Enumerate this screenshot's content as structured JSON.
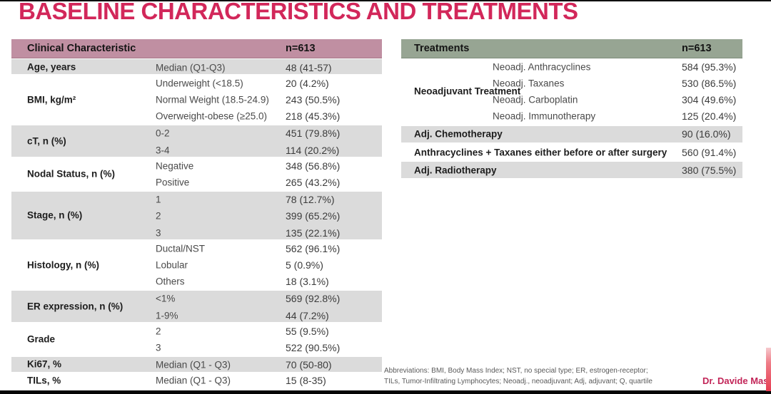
{
  "page": {
    "title": "BASELINE CHARACTERISTICS AND TREATMENTS",
    "credit": "Dr. Davide Massa",
    "footnote_line1": "Abbreviations: BMI, Body Mass Index; NST, no special type; ER, estrogen-receptor;",
    "footnote_line2": "TILs, Tumor-Infiltrating Lymphocytes; Neoadj., neoadjuvant; Adj, adjuvant; Q, quartile"
  },
  "colors": {
    "title_accent": "#d2275a",
    "left_header_bg": "#c08fa2",
    "right_header_bg": "#97a593",
    "row_gray": "#dbdbdb",
    "row_white": "#ffffff",
    "credit_accent": "#c22558",
    "right_edge_bar": "#e63d52"
  },
  "left_table": {
    "header": {
      "col1": "Clinical Characteristic",
      "n": "n=613"
    },
    "groups": [
      {
        "label": "Age, years",
        "shade": "gray",
        "rows": [
          {
            "sub": "Median (Q1-Q3)",
            "value": "48 (41-57)"
          }
        ]
      },
      {
        "label": "BMI, kg/m²",
        "shade": "white",
        "rows": [
          {
            "sub": "Underweight (<18.5)",
            "value": "20 (4.2%)"
          },
          {
            "sub": "Normal Weight (18.5-24.9)",
            "value": "243 (50.5%)"
          },
          {
            "sub": "Overweight-obese (≥25.0)",
            "value": "218 (45.3%)"
          }
        ]
      },
      {
        "label": "cT, n (%)",
        "shade": "gray",
        "rows": [
          {
            "sub": "0-2",
            "value": "451 (79.8%)"
          },
          {
            "sub": "3-4",
            "value": "114 (20.2%)"
          }
        ]
      },
      {
        "label": "Nodal Status, n (%)",
        "shade": "white",
        "rows": [
          {
            "sub": "Negative",
            "value": "348 (56.8%)"
          },
          {
            "sub": "Positive",
            "value": "265 (43.2%)"
          }
        ]
      },
      {
        "label": "Stage, n (%)",
        "shade": "gray",
        "rows": [
          {
            "sub": "1",
            "value": "78 (12.7%)"
          },
          {
            "sub": "2",
            "value": "399 (65.2%)"
          },
          {
            "sub": "3",
            "value": "135 (22.1%)"
          }
        ]
      },
      {
        "label": "Histology, n (%)",
        "shade": "white",
        "rows": [
          {
            "sub": "Ductal/NST",
            "value": "562 (96.1%)"
          },
          {
            "sub": "Lobular",
            "value": "5 (0.9%)"
          },
          {
            "sub": "Others",
            "value": "18 (3.1%)"
          }
        ]
      },
      {
        "label": "ER expression, n (%)",
        "shade": "gray",
        "rows": [
          {
            "sub": "<1%",
            "value": "569 (92.8%)"
          },
          {
            "sub": "1-9%",
            "value": "44 (7.2%)"
          }
        ]
      },
      {
        "label": "Grade",
        "shade": "white",
        "rows": [
          {
            "sub": "2",
            "value": "55 (9.5%)"
          },
          {
            "sub": "3",
            "value": "522 (90.5%)"
          }
        ]
      },
      {
        "label": "Ki67, %",
        "shade": "gray",
        "rows": [
          {
            "sub": "Median (Q1 - Q3)",
            "value": "70 (50-80)"
          }
        ]
      },
      {
        "label": "TILs, %",
        "shade": "white",
        "rows": [
          {
            "sub": "Median (Q1 - Q3)",
            "value": "15 (8-35)"
          }
        ]
      }
    ]
  },
  "right_table": {
    "header": {
      "col1": "Treatments",
      "n": "n=613"
    },
    "neoadjuvant_group": {
      "label": "Neoadjuvant Treatment",
      "shade": "white",
      "rows": [
        {
          "sub": "Neoadj. Anthracyclines",
          "value": "584 (95.3%)"
        },
        {
          "sub": "Neoadj. Taxanes",
          "value": "530 (86.5%)"
        },
        {
          "sub": "Neoadj. Carboplatin",
          "value": "304 (49.6%)"
        },
        {
          "sub": "Neoadj. Immunotherapy",
          "value": "125 (20.4%)"
        }
      ]
    },
    "single_rows": [
      {
        "label": "Adj. Chemotherapy",
        "value": "90 (16.0%)",
        "shade": "gray"
      },
      {
        "label": "Anthracyclines + Taxanes either before or after surgery",
        "value": "560 (91.4%)",
        "shade": "white"
      },
      {
        "label": "Adj. Radiotherapy",
        "value": "380 (75.5%)",
        "shade": "gray"
      }
    ]
  }
}
